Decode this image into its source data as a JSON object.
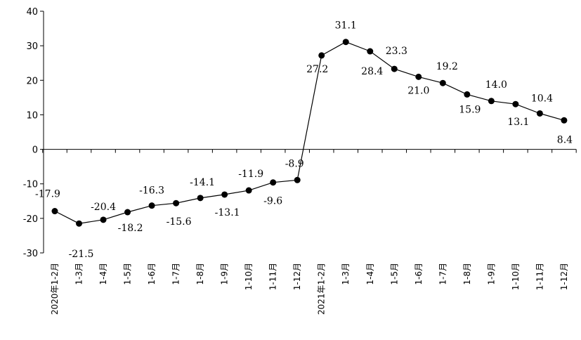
{
  "chart_data": {
    "type": "line",
    "title": "",
    "xlabel": "",
    "ylabel": "",
    "ylim": [
      -30,
      40
    ],
    "yticks": [
      40,
      30,
      20,
      10,
      0,
      -10,
      -20,
      -30
    ],
    "grid": false,
    "legend": "none",
    "line_color": "#000000",
    "categories": [
      "2020年1-2月",
      "1-3月",
      "1-4月",
      "1-5月",
      "1-6月",
      "1-7月",
      "1-8月",
      "1-9月",
      "1-10月",
      "1-11月",
      "1-12月",
      "2021年1-2月",
      "1-3月",
      "1-4月",
      "1-5月",
      "1-6月",
      "1-7月",
      "1-8月",
      "1-9月",
      "1-10月",
      "1-11月",
      "1-12月"
    ],
    "series": [
      {
        "values": [
          -17.9,
          -21.5,
          -20.4,
          -18.2,
          -16.3,
          -15.6,
          -14.1,
          -13.1,
          -11.9,
          -9.6,
          -8.9,
          27.2,
          31.1,
          28.4,
          23.3,
          21.0,
          19.2,
          15.9,
          14.0,
          13.1,
          10.4,
          8.4
        ],
        "labels": [
          "-17.9",
          "-21.5",
          "-20.4",
          "-18.2",
          "-16.3",
          "-15.6",
          "-14.1",
          "-13.1",
          "-11.9",
          "-9.6",
          "-8.9",
          "27.2",
          "31.1",
          "28.4",
          "23.3",
          "21.0",
          "19.2",
          "15.9",
          "14.0",
          "13.1",
          "10.4",
          "8.4"
        ]
      }
    ]
  }
}
